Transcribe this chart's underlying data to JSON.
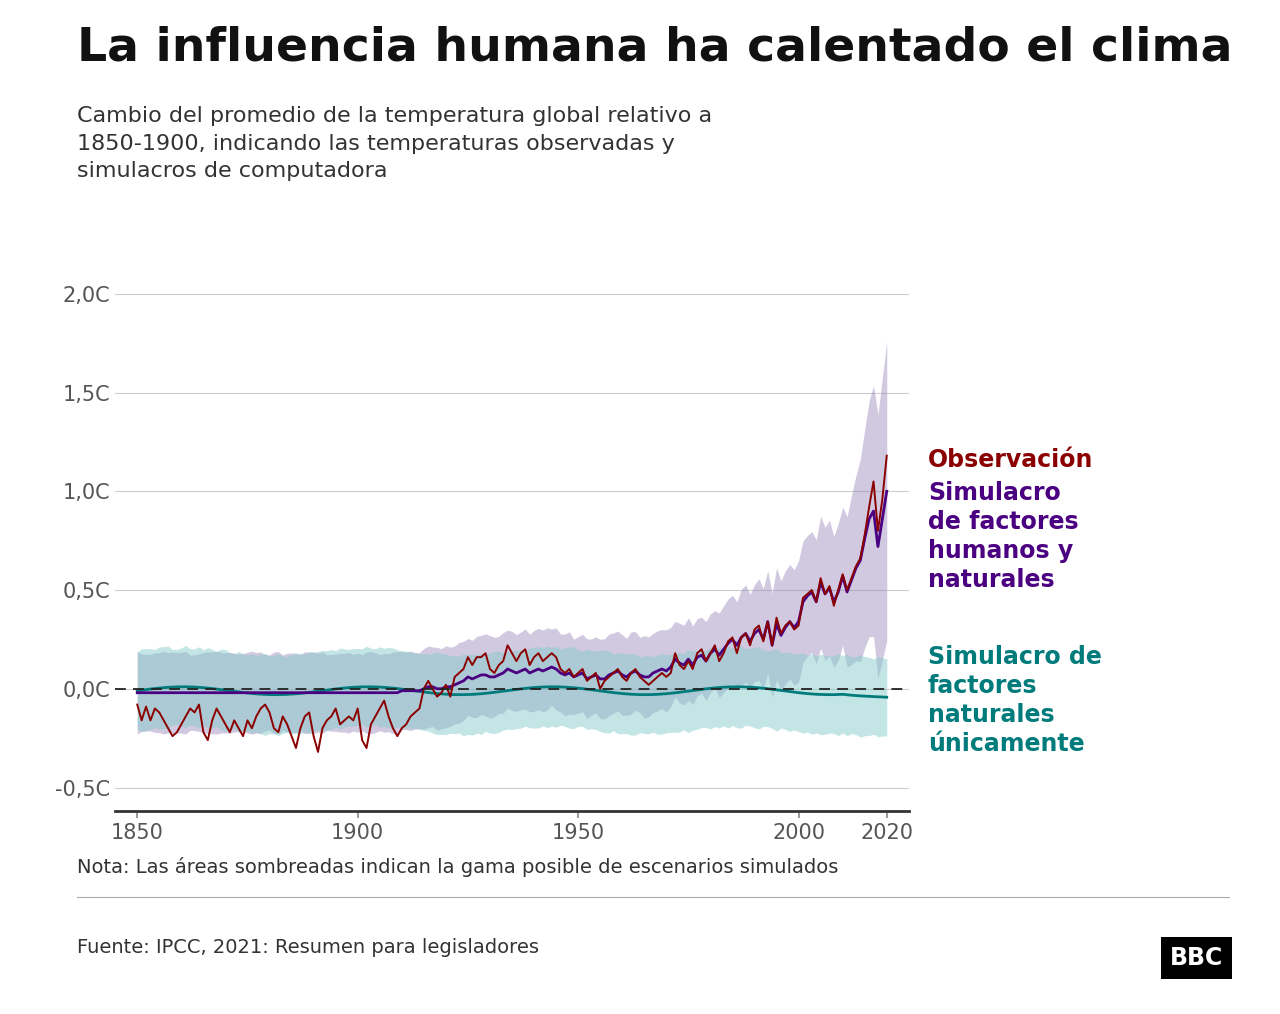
{
  "title": "La influencia humana ha calentado el clima",
  "subtitle": "Cambio del promedio de la temperatura global relativo a\n1850-1900, indicando las temperaturas observadas y\nsimulacros de computadora",
  "note": "Nota: Las áreas sombreadas indican la gama posible de escenarios simulados",
  "source": "Fuente: IPCC, 2021: Resumen para legisladores",
  "obs_label": "Observación",
  "human_label": "Simulacro\nde factores\nhumanos y\nnaturales",
  "natural_label": "Simulacro de\nfactores\nnaturales\núnicamente",
  "obs_color": "#8B0000",
  "human_color": "#4B0082",
  "natural_color": "#007B7B",
  "human_fill_color": "#9988BB",
  "natural_fill_color": "#88CCCC",
  "background_color": "#FFFFFF",
  "grid_color": "#CCCCCC",
  "ytick_labels": [
    "-0,5C",
    "0,0C",
    "0,5C",
    "1,0C",
    "1,5C",
    "2,0C"
  ],
  "ytick_values": [
    -0.5,
    0.0,
    0.5,
    1.0,
    1.5,
    2.0
  ],
  "xtick_values": [
    1850,
    1900,
    1950,
    2000,
    2020
  ],
  "xlim": [
    1845,
    2025
  ],
  "ylim": [
    -0.62,
    2.05
  ]
}
